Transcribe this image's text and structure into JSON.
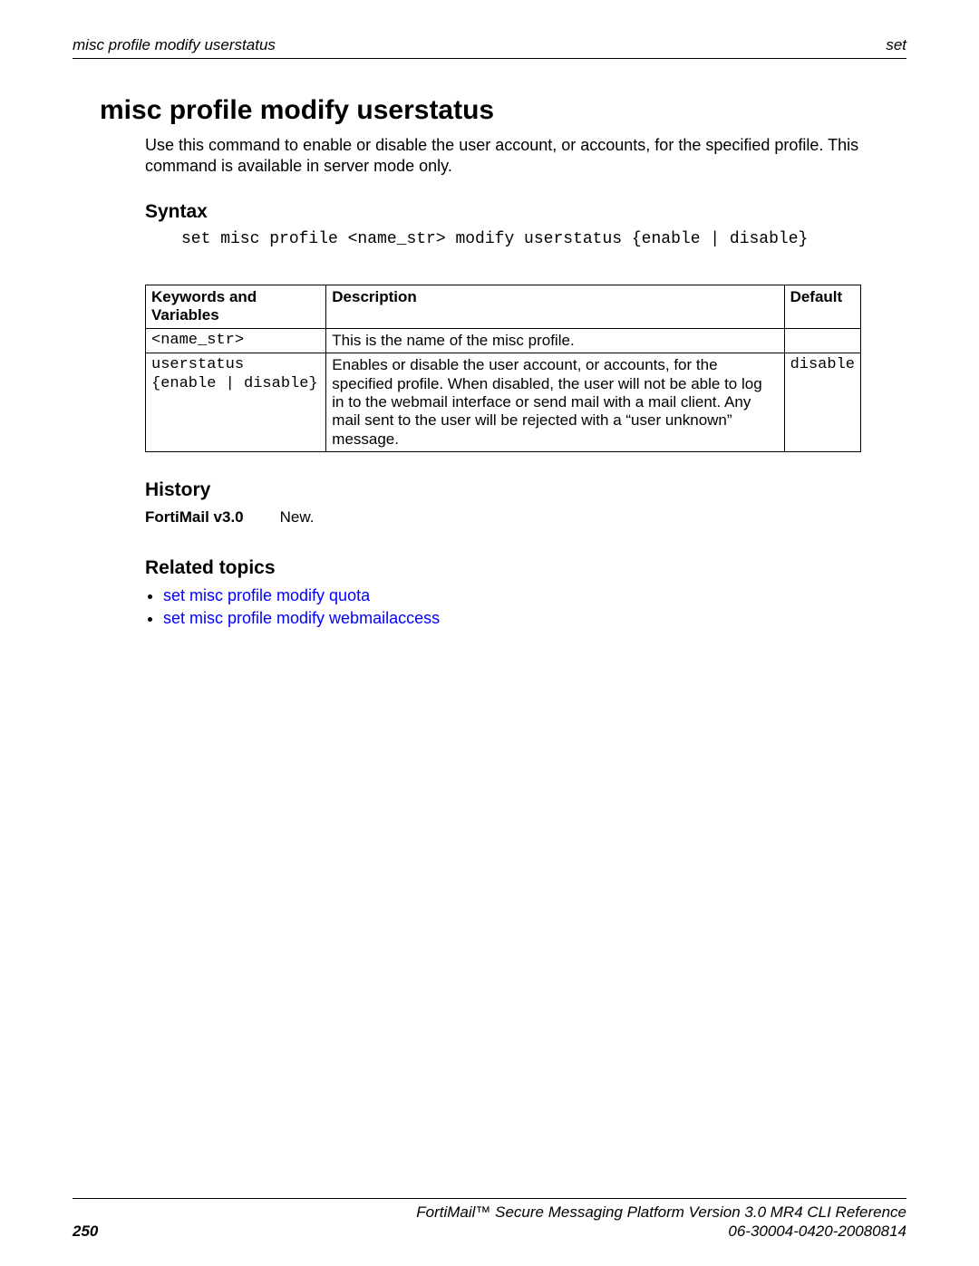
{
  "header": {
    "left": "misc profile modify userstatus",
    "right": "set"
  },
  "title": "misc profile modify userstatus",
  "intro": "Use this command to enable or disable the user account, or accounts, for the specified profile. This command is available in server mode only.",
  "sections": {
    "syntax_label": "Syntax",
    "history_label": "History",
    "related_label": "Related topics"
  },
  "syntax_code": "set misc profile <name_str> modify userstatus {enable | disable}",
  "table": {
    "columns": [
      "Keywords and Variables",
      "Description",
      "Default"
    ],
    "rows": [
      {
        "kv": "<name_str>",
        "desc": "This is the name of the misc profile.",
        "def": ""
      },
      {
        "kv": "userstatus\n{enable | disable}",
        "desc": "Enables or disable the user account, or accounts, for the specified profile. When disabled, the user will not be able to log in to the webmail interface or send mail with a mail client. Any mail sent to the user will be rejected with a “user unknown” message.",
        "def": "disable"
      }
    ]
  },
  "history": {
    "version": "FortiMail v3.0",
    "note": "New."
  },
  "related": [
    "set misc profile modify quota",
    "set misc profile modify webmailaccess"
  ],
  "footer": {
    "page": "250",
    "line1": "FortiMail™ Secure Messaging Platform Version 3.0 MR4 CLI Reference",
    "line2": "06-30004-0420-20080814"
  },
  "colors": {
    "link": "#0000ff",
    "text": "#000000",
    "background": "#ffffff",
    "border": "#000000"
  }
}
